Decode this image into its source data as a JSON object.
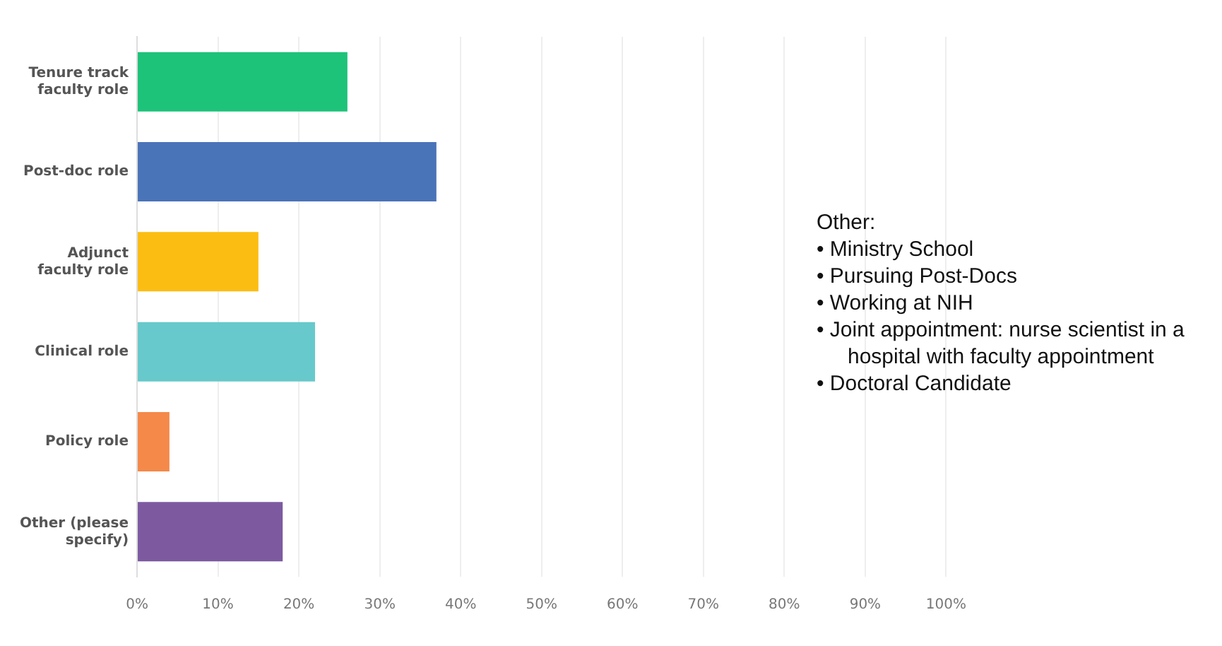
{
  "chart_data": {
    "type": "bar",
    "orientation": "horizontal",
    "categories": [
      "Tenure track faculty role",
      "Post-doc role",
      "Adjunct faculty role",
      "Clinical role",
      "Policy role",
      "Other (please specify)"
    ],
    "values": [
      26,
      37,
      15,
      22,
      4,
      18
    ],
    "colors": [
      "#1dc379",
      "#4a74b8",
      "#fcbd12",
      "#67c9cb",
      "#f5894a",
      "#7d5aa0"
    ],
    "xlim": [
      0,
      100
    ],
    "xticks": [
      {
        "value": 0,
        "label": "0%"
      },
      {
        "value": 10,
        "label": "10%"
      },
      {
        "value": 20,
        "label": "20%"
      },
      {
        "value": 30,
        "label": "30%"
      },
      {
        "value": 40,
        "label": "40%"
      },
      {
        "value": 50,
        "label": "50%"
      },
      {
        "value": 60,
        "label": "60%"
      },
      {
        "value": 70,
        "label": "70%"
      },
      {
        "value": 80,
        "label": "80%"
      },
      {
        "value": 90,
        "label": "90%"
      },
      {
        "value": 100,
        "label": "100%"
      }
    ],
    "grid": "x",
    "legend": false,
    "annotations": [
      "Other:",
      "• Ministry School",
      "• Pursuing Post-Docs",
      "• Working at NIH",
      "• Joint appointment: nurse scientist in a hospital with faculty appointment",
      "• Doctoral Candidate"
    ]
  }
}
